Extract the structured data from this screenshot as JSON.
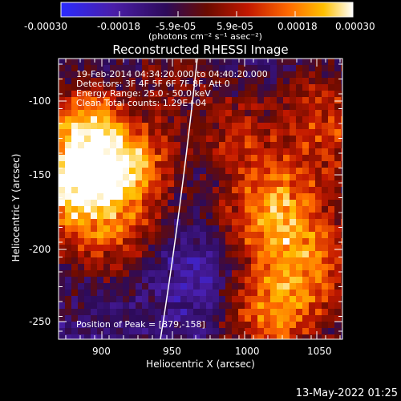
{
  "colorbar": {
    "colors": [
      "#2a2bff",
      "#4a1ea8",
      "#2d0b5a",
      "#6b0b00",
      "#c21800",
      "#ff6a00",
      "#ffc000",
      "#ffffff"
    ],
    "ticks": [
      "-0.00030",
      "-0.00018",
      "-5.9e-05",
      "5.9e-05",
      "0.00018",
      "0.00030"
    ],
    "unit_label": "(photons cm⁻² s⁻¹ asec⁻²)"
  },
  "title": "Reconstructed RHESSI Image",
  "annotations": {
    "time_range": "19-Feb-2014 04:34:20.000 to 04:40:20.000",
    "detectors": "Detectors: 3F 4F 5F 6F 7F 8F, Att 0",
    "energy": "Energy Range: 25.0 - 50.0 keV",
    "clean": "Clean    Total counts: 1.29E+04",
    "peak": "Position of Peak = [879,-158]"
  },
  "axes": {
    "xlabel": "Heliocentric X (arcsec)",
    "ylabel": "Heliocentric Y (arcsec)",
    "xticks": [
      "900",
      "950",
      "1000",
      "1050"
    ],
    "yticks": [
      "-100",
      "-150",
      "-200",
      "-250"
    ],
    "xlim": [
      870,
      1062
    ],
    "ylim": [
      -268,
      -77
    ]
  },
  "footer_timestamp": "13-May-2022 01:25",
  "icons": {
    "limb": "solar-limb-line"
  }
}
